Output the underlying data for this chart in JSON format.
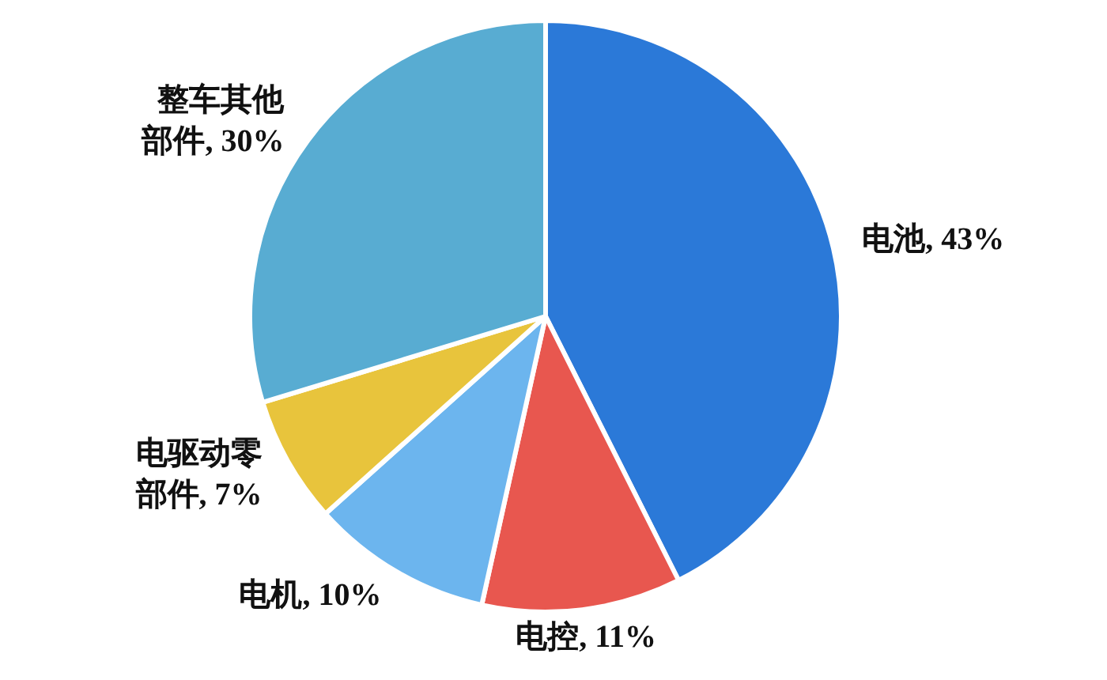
{
  "chart_data": {
    "type": "pie",
    "categories": [
      "电池",
      "电控",
      "电机",
      "电驱动零部件",
      "整车其他部件"
    ],
    "values": [
      43,
      11,
      10,
      7,
      30
    ],
    "value_labels": [
      "43%",
      "11%",
      "10%",
      "7%",
      "30%"
    ],
    "colors": [
      "#2b79d8",
      "#e8574f",
      "#6cb5ee",
      "#e8c43c",
      "#58acd2"
    ]
  }
}
